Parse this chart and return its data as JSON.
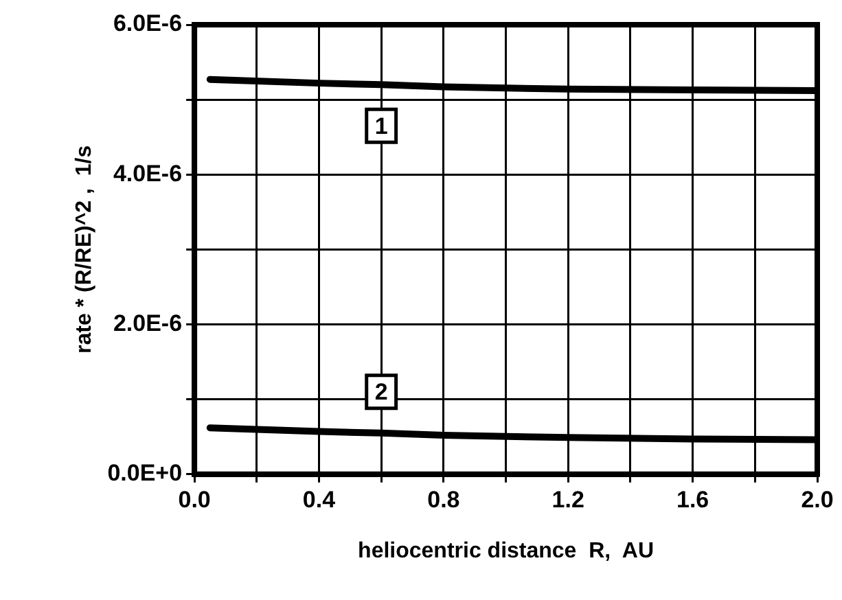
{
  "chart_data": {
    "type": "line",
    "xlabel": "heliocentric distance  R,  AU",
    "ylabel": "rate * (R/RE)^2 ,  1/s",
    "x": [
      0.05,
      0.4,
      0.6,
      0.8,
      1.2,
      1.6,
      2.0
    ],
    "series": [
      {
        "name": "1",
        "color": "#000000",
        "values": [
          5.27e-06,
          5.22e-06,
          5.2e-06,
          5.17e-06,
          5.14e-06,
          5.13e-06,
          5.12e-06
        ]
      },
      {
        "name": "2",
        "color": "#000000",
        "values": [
          6.2e-07,
          5.7e-07,
          5.5e-07,
          5.2e-07,
          4.9e-07,
          4.7e-07,
          4.6e-07
        ]
      }
    ],
    "xlim": [
      0,
      2
    ],
    "xticks": [
      {
        "value": 0,
        "label": "0.0"
      },
      {
        "value": 0.2,
        "label": null
      },
      {
        "value": 0.4,
        "label": "0.4"
      },
      {
        "value": 0.6,
        "label": null
      },
      {
        "value": 0.8,
        "label": "0.8"
      },
      {
        "value": 1.0,
        "label": null
      },
      {
        "value": 1.2,
        "label": "1.2"
      },
      {
        "value": 1.4,
        "label": null
      },
      {
        "value": 1.6,
        "label": "1.6"
      },
      {
        "value": 1.8,
        "label": null
      },
      {
        "value": 2.0,
        "label": "2.0"
      }
    ],
    "ylim": [
      0,
      6e-06
    ],
    "yticks": [
      {
        "value": 0,
        "label": "0.0E+0"
      },
      {
        "value": 1e-06,
        "label": null
      },
      {
        "value": 2e-06,
        "label": "2.0E-6"
      },
      {
        "value": 3e-06,
        "label": null
      },
      {
        "value": 4e-06,
        "label": "4.0E-6"
      },
      {
        "value": 5e-06,
        "label": null
      },
      {
        "value": 6e-06,
        "label": "6.0E-6"
      }
    ],
    "grid": true,
    "legend": false,
    "marker": "none",
    "line_style": "solid"
  }
}
